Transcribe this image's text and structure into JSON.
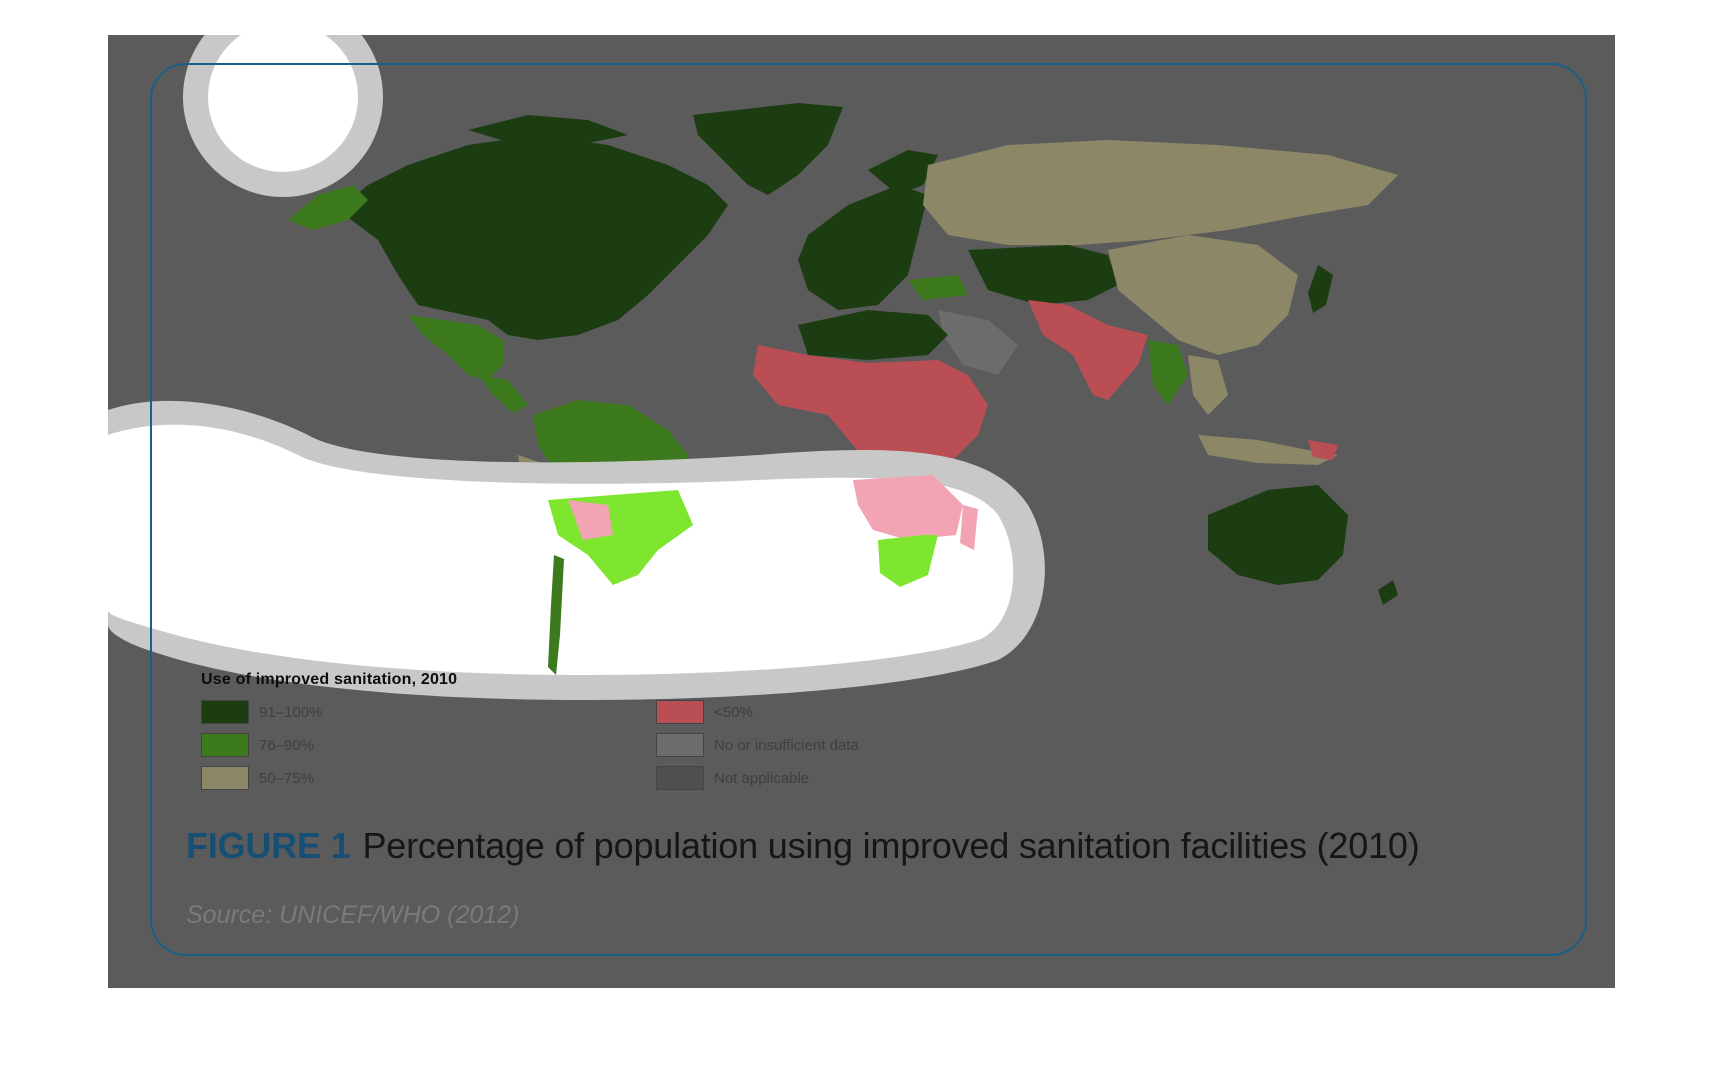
{
  "legend": {
    "title": "Use of improved sanitation, 2010",
    "items": [
      {
        "label": "91–100%",
        "color": "#1b3d11"
      },
      {
        "label": "76–90%",
        "color": "#3d7a1e"
      },
      {
        "label": "50–75%",
        "color": "#8b8767"
      },
      {
        "label": "<50%",
        "color": "#b94f55"
      },
      {
        "label": "No or insufficient data",
        "color": "#6c6c6c"
      },
      {
        "label": "Not applicable",
        "color": "#4f4f4f"
      }
    ]
  },
  "caption": {
    "figure_label": "FIGURE 1",
    "text": "Percentage of population using improved sanitation facilities (2010)"
  },
  "source": "Source: UNICEF/WHO (2012)",
  "colors": {
    "background": "#5b5b5b",
    "frame": "#1b5f86",
    "highlight_green": "#7ee62f",
    "highlight_pink": "#f2a3b4"
  }
}
